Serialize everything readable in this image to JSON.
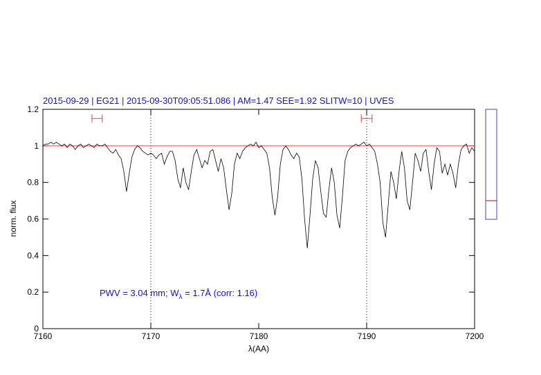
{
  "chart_data": {
    "type": "line",
    "title": "2015-09-29 | EG21 | 2015-09-30T09:05:51.086 | AM=1.47 SEE=1.92 SLITW=10 | UVES",
    "xlabel": "λ(AA)",
    "ylabel": "norm. flux",
    "annotation": [
      "PWV = 3.04 mm; W",
      "λ",
      " = 1.7Å (corr: 1.16)"
    ],
    "xlim": [
      7160,
      7200
    ],
    "ylim": [
      0,
      1.2
    ],
    "xticks": [
      7160,
      7170,
      7180,
      7190,
      7200
    ],
    "yticks": [
      0,
      0.2,
      0.4,
      0.6,
      0.8,
      1,
      1.2
    ],
    "color": "#000000",
    "refline": {
      "value": 1,
      "color": "#e04040"
    },
    "vlines": [
      7170,
      7190
    ],
    "ranges": [
      {
        "x": [
          7164.55,
          7165.5
        ],
        "y": 1.15,
        "color": "#e04040"
      },
      {
        "x": [
          7189.5,
          7190.5
        ],
        "y": 1.15,
        "color": "#e04040"
      }
    ],
    "x": [
      7160,
      7160.25,
      7160.5,
      7160.75,
      7161,
      7161.25,
      7161.5,
      7161.75,
      7162,
      7162.25,
      7162.5,
      7162.75,
      7163,
      7163.25,
      7163.5,
      7163.75,
      7164,
      7164.25,
      7164.5,
      7164.75,
      7165,
      7165.25,
      7165.5,
      7165.75,
      7166,
      7166.25,
      7166.5,
      7166.75,
      7167,
      7167.25,
      7167.5,
      7167.75,
      7168,
      7168.25,
      7168.5,
      7168.75,
      7169,
      7169.25,
      7169.5,
      7169.75,
      7170,
      7170.25,
      7170.5,
      7170.75,
      7171,
      7171.25,
      7171.5,
      7171.75,
      7172,
      7172.25,
      7172.5,
      7172.75,
      7173,
      7173.25,
      7173.5,
      7173.75,
      7174,
      7174.25,
      7174.5,
      7174.75,
      7175,
      7175.25,
      7175.5,
      7175.75,
      7176,
      7176.25,
      7176.5,
      7176.75,
      7177,
      7177.25,
      7177.5,
      7177.75,
      7178,
      7178.25,
      7178.5,
      7178.75,
      7179,
      7179.25,
      7179.5,
      7179.75,
      7180,
      7180.25,
      7180.5,
      7180.75,
      7181,
      7181.25,
      7181.5,
      7181.75,
      7182,
      7182.25,
      7182.5,
      7182.75,
      7183,
      7183.25,
      7183.5,
      7183.75,
      7184,
      7184.25,
      7184.5,
      7184.75,
      7185,
      7185.25,
      7185.5,
      7185.75,
      7186,
      7186.25,
      7186.5,
      7186.75,
      7187,
      7187.25,
      7187.5,
      7187.75,
      7188,
      7188.25,
      7188.5,
      7188.75,
      7189,
      7189.25,
      7189.5,
      7189.75,
      7190,
      7190.25,
      7190.5,
      7190.75,
      7191,
      7191.25,
      7191.5,
      7191.75,
      7192,
      7192.25,
      7192.5,
      7192.75,
      7193,
      7193.25,
      7193.5,
      7193.75,
      7194,
      7194.25,
      7194.5,
      7194.75,
      7195,
      7195.25,
      7195.5,
      7195.75,
      7196,
      7196.25,
      7196.5,
      7196.75,
      7197,
      7197.25,
      7197.5,
      7197.75,
      7198,
      7198.25,
      7198.5,
      7198.75,
      7199,
      7199.25,
      7199.5,
      7199.75,
      7200
    ],
    "values": [
      1.0,
      1.01,
      1.01,
      1.02,
      1.01,
      1.02,
      1.01,
      1.0,
      1.01,
      0.99,
      1.01,
      1.0,
      0.98,
      1.0,
      1.01,
      0.99,
      1.0,
      1.01,
      1.0,
      0.99,
      1.01,
      1.0,
      1.0,
      1.01,
      0.99,
      0.97,
      0.96,
      0.98,
      0.95,
      0.93,
      0.86,
      0.75,
      0.85,
      0.94,
      0.98,
      1.0,
      0.99,
      0.97,
      0.96,
      0.95,
      0.96,
      0.95,
      0.93,
      0.95,
      0.96,
      0.9,
      0.94,
      0.97,
      0.97,
      0.92,
      0.82,
      0.77,
      0.88,
      0.8,
      0.76,
      0.86,
      0.95,
      0.98,
      0.93,
      0.88,
      0.92,
      0.9,
      0.97,
      0.98,
      0.92,
      0.86,
      0.93,
      0.88,
      0.76,
      0.65,
      0.74,
      0.9,
      0.96,
      0.93,
      0.97,
      0.99,
      1.0,
      1.01,
      1.0,
      1.02,
      0.99,
      1.0,
      0.98,
      0.96,
      0.88,
      0.72,
      0.62,
      0.72,
      0.9,
      0.98,
      1.0,
      0.98,
      0.95,
      0.93,
      0.96,
      0.94,
      0.82,
      0.6,
      0.44,
      0.62,
      0.82,
      0.92,
      0.88,
      0.75,
      0.63,
      0.61,
      0.76,
      0.88,
      0.8,
      0.62,
      0.55,
      0.72,
      0.92,
      0.97,
      0.99,
      1.0,
      1.01,
      1.0,
      1.01,
      1.02,
      1.0,
      1.01,
      0.99,
      0.97,
      0.9,
      0.8,
      0.58,
      0.5,
      0.68,
      0.86,
      0.8,
      0.71,
      0.86,
      0.97,
      0.88,
      0.7,
      0.65,
      0.8,
      0.96,
      0.92,
      0.86,
      0.96,
      0.98,
      0.86,
      0.76,
      0.9,
      0.99,
      0.97,
      0.85,
      0.9,
      0.84,
      0.9,
      0.85,
      0.77,
      0.9,
      0.98,
      1.0,
      1.01,
      0.96,
      0.99,
      0.97
    ]
  }
}
